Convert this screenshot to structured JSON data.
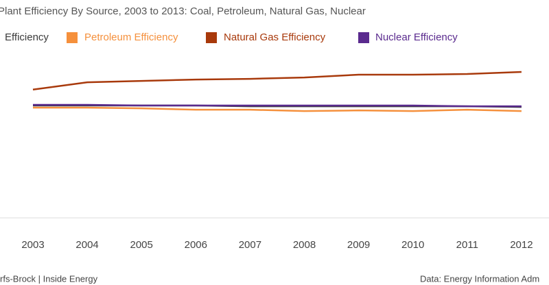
{
  "chart_data": {
    "type": "line",
    "title": "Plant Efficiency By Source, 2003 to 2013: Coal, Petroleum, Natural Gas, Nuclear",
    "categories": [
      "2003",
      "2004",
      "2005",
      "2006",
      "2007",
      "2008",
      "2009",
      "2010",
      "2011",
      "2012"
    ],
    "series": [
      {
        "name": "Efficiency",
        "color": "#3a3a3a",
        "values": [
          32.4,
          32.4,
          32.4,
          32.4,
          32.2,
          32.2,
          32.2,
          32.2,
          32.2,
          32.0
        ]
      },
      {
        "name": "Petroleum Efficiency",
        "color": "#f5903c",
        "values": [
          31.8,
          31.8,
          31.6,
          31.2,
          31.2,
          30.8,
          31.0,
          30.8,
          31.2,
          30.8
        ]
      },
      {
        "name": "Natural Gas Efficiency",
        "color": "#a8390b",
        "values": [
          37.0,
          39.1,
          39.5,
          39.9,
          40.1,
          40.5,
          41.3,
          41.3,
          41.5,
          42.1
        ]
      },
      {
        "name": "Nuclear Efficiency",
        "color": "#5a2a8e",
        "values": [
          32.6,
          32.6,
          32.4,
          32.4,
          32.4,
          32.4,
          32.4,
          32.4,
          32.2,
          32.2
        ]
      }
    ],
    "ylim": [
      0,
      50
    ],
    "footer_left": "rfs-Brock | Inside Energy",
    "footer_right": "Data: Energy Information Adm"
  }
}
